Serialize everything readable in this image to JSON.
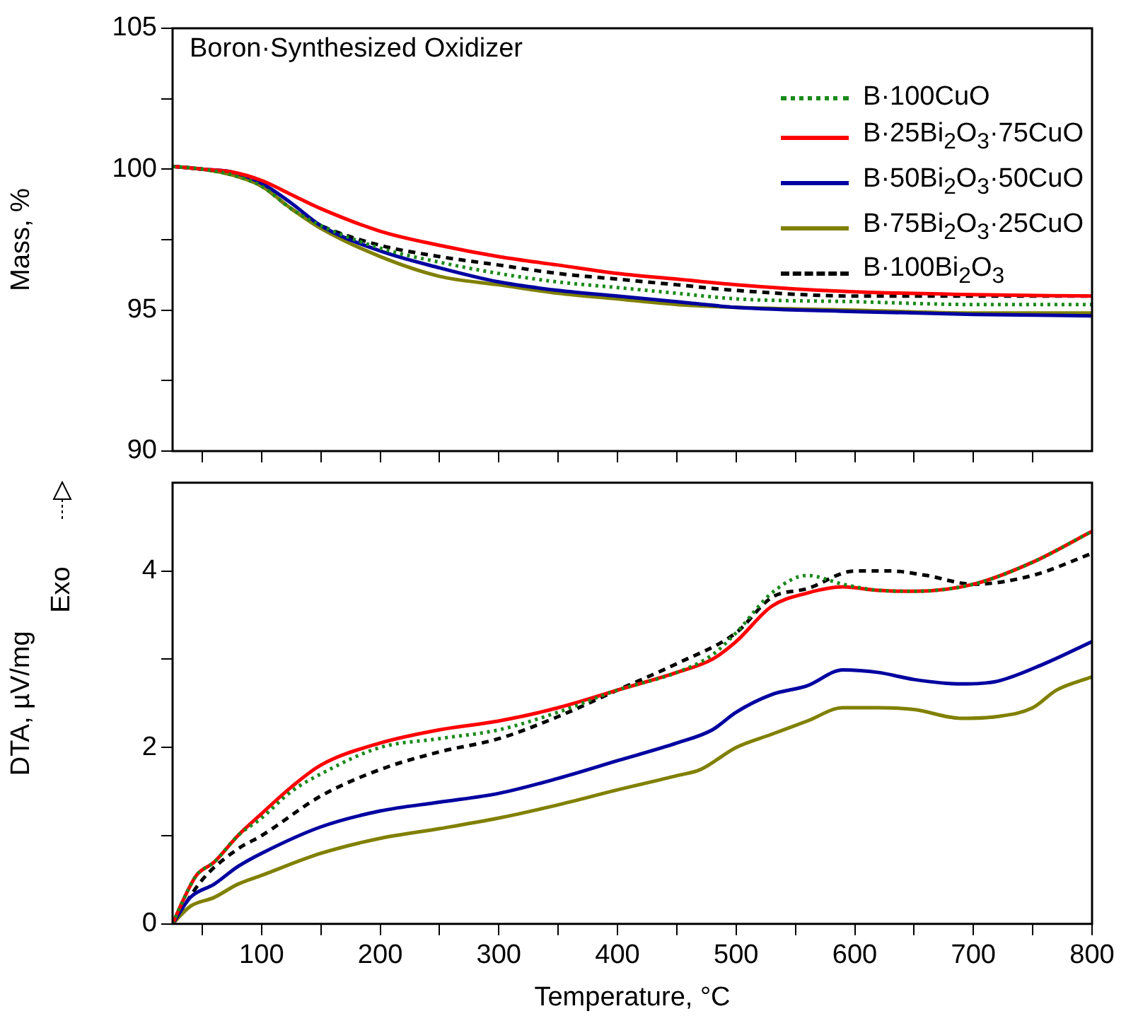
{
  "chart_data": [
    {
      "type": "line",
      "title": "Boron·Synthesized Oxidizer",
      "ylabel": "Mass, %",
      "xlim": [
        25,
        800
      ],
      "xticks": [
        {
          "value": 50,
          "label": null
        },
        {
          "value": 100,
          "label": null
        },
        {
          "value": 150,
          "label": null
        },
        {
          "value": 200,
          "label": null
        },
        {
          "value": 250,
          "label": null
        },
        {
          "value": 300,
          "label": null
        },
        {
          "value": 350,
          "label": null
        },
        {
          "value": 400,
          "label": null
        },
        {
          "value": 450,
          "label": null
        },
        {
          "value": 500,
          "label": null
        },
        {
          "value": 550,
          "label": null
        },
        {
          "value": 600,
          "label": null
        },
        {
          "value": 650,
          "label": null
        },
        {
          "value": 700,
          "label": null
        },
        {
          "value": 750,
          "label": null
        }
      ],
      "ylim": [
        90,
        105
      ],
      "yticks": [
        90,
        {
          "value": 92.5,
          "label": null
        },
        95,
        {
          "value": 97.5,
          "label": null
        },
        100,
        {
          "value": 102.5,
          "label": null
        },
        105
      ],
      "tick_labels": "y",
      "legend": "top right",
      "series": [
        {
          "name": "B·100CuO",
          "color": "#1a8a1a",
          "line_style": "dotted",
          "x": [
            25,
            50,
            75,
            100,
            125,
            150,
            200,
            250,
            300,
            350,
            400,
            450,
            500,
            600,
            700,
            800
          ],
          "values": [
            100.1,
            100,
            99.8,
            99.4,
            98.6,
            98.0,
            97.2,
            96.7,
            96.3,
            96.0,
            95.8,
            95.6,
            95.4,
            95.3,
            95.2,
            95.2
          ]
        },
        {
          "name": "B·25Bi$_{2}$O$_{3}$·75CuO",
          "color": "#ff0000",
          "line_style": "solid",
          "x": [
            25,
            50,
            75,
            100,
            125,
            150,
            200,
            250,
            300,
            350,
            400,
            450,
            500,
            550,
            600,
            700,
            800
          ],
          "values": [
            100.1,
            100.0,
            99.9,
            99.6,
            99.1,
            98.6,
            97.8,
            97.3,
            96.9,
            96.6,
            96.3,
            96.1,
            95.9,
            95.75,
            95.65,
            95.55,
            95.5
          ]
        },
        {
          "name": "B·50Bi$_{2}$O$_{3}$·50CuO",
          "color": "#0000a0",
          "line_style": "solid",
          "x": [
            25,
            50,
            75,
            100,
            125,
            150,
            200,
            250,
            300,
            350,
            400,
            450,
            500,
            600,
            700,
            800
          ],
          "values": [
            100.1,
            100.0,
            99.9,
            99.5,
            98.8,
            98.0,
            97.1,
            96.5,
            96.0,
            95.7,
            95.5,
            95.3,
            95.1,
            94.95,
            94.85,
            94.8
          ]
        },
        {
          "name": "B·75Bi$_{2}$O$_{3}$·25CuO",
          "color": "#808000",
          "line_style": "solid",
          "x": [
            25,
            50,
            75,
            100,
            125,
            150,
            200,
            250,
            300,
            350,
            400,
            450,
            500,
            600,
            700,
            800
          ],
          "values": [
            100.1,
            100,
            99.8,
            99.4,
            98.6,
            97.9,
            96.9,
            96.2,
            95.9,
            95.6,
            95.4,
            95.2,
            95.1,
            95.0,
            94.9,
            94.9
          ]
        },
        {
          "name": "B·100Bi$_{2}$O$_{3}$",
          "color": "#000000",
          "line_style": "dashed",
          "x": [
            25,
            50,
            75,
            100,
            125,
            150,
            200,
            250,
            300,
            350,
            400,
            450,
            500,
            600,
            700,
            800
          ],
          "values": [
            100.1,
            100,
            99.8,
            99.4,
            98.6,
            98.0,
            97.3,
            96.9,
            96.6,
            96.3,
            96.1,
            95.9,
            95.7,
            95.5,
            95.5,
            95.5
          ]
        }
      ]
    },
    {
      "type": "line",
      "xlabel": "Temperature, °C",
      "ylabel": "DTA, µV/mg",
      "annotations": [
        "Exo"
      ],
      "xlim": [
        25,
        800
      ],
      "xticks": [
        {
          "value": 50,
          "label": null
        },
        100,
        {
          "value": 150,
          "label": null
        },
        200,
        {
          "value": 250,
          "label": null
        },
        300,
        {
          "value": 350,
          "label": null
        },
        400,
        {
          "value": 450,
          "label": null
        },
        500,
        {
          "value": 550,
          "label": null
        },
        600,
        {
          "value": 650,
          "label": null
        },
        700,
        {
          "value": 750,
          "label": null
        },
        800
      ],
      "ylim": [
        0,
        5
      ],
      "yticks": [
        0,
        {
          "value": 1,
          "label": null
        },
        2,
        {
          "value": 3,
          "label": null
        },
        4
      ],
      "series": [
        {
          "color": "#1a8a1a",
          "line_style": "dotted",
          "x": [
            25,
            35,
            45,
            60,
            80,
            100,
            125,
            150,
            200,
            250,
            300,
            350,
            400,
            450,
            480,
            500,
            530,
            560,
            590,
            620,
            650,
            700,
            750,
            800
          ],
          "values": [
            0,
            0.3,
            0.55,
            0.7,
            1.0,
            1.2,
            1.5,
            1.7,
            2.0,
            2.1,
            2.2,
            2.4,
            2.65,
            2.85,
            3.05,
            3.3,
            3.75,
            3.95,
            3.85,
            3.78,
            3.77,
            3.85,
            4.1,
            4.45
          ]
        },
        {
          "color": "#ff0000",
          "line_style": "solid",
          "x": [
            25,
            35,
            45,
            60,
            80,
            100,
            125,
            150,
            200,
            250,
            300,
            350,
            400,
            450,
            480,
            500,
            530,
            560,
            590,
            620,
            650,
            700,
            750,
            800
          ],
          "values": [
            0,
            0.3,
            0.55,
            0.7,
            1.0,
            1.25,
            1.55,
            1.8,
            2.05,
            2.2,
            2.3,
            2.45,
            2.65,
            2.85,
            3.0,
            3.2,
            3.6,
            3.75,
            3.82,
            3.78,
            3.77,
            3.85,
            4.1,
            4.45
          ]
        },
        {
          "color": "#0000a0",
          "line_style": "solid",
          "x": [
            25,
            40,
            60,
            80,
            100,
            150,
            200,
            250,
            300,
            350,
            400,
            450,
            480,
            500,
            530,
            560,
            590,
            620,
            650,
            690,
            720,
            760,
            800
          ],
          "values": [
            0,
            0.3,
            0.45,
            0.65,
            0.8,
            1.1,
            1.28,
            1.38,
            1.48,
            1.65,
            1.85,
            2.05,
            2.2,
            2.4,
            2.6,
            2.7,
            2.88,
            2.85,
            2.77,
            2.72,
            2.75,
            2.95,
            3.2
          ]
        },
        {
          "color": "#808000",
          "line_style": "solid",
          "x": [
            25,
            40,
            60,
            80,
            100,
            150,
            200,
            250,
            300,
            350,
            400,
            450,
            470,
            500,
            530,
            560,
            590,
            620,
            650,
            690,
            720,
            750,
            770,
            800
          ],
          "values": [
            0,
            0.2,
            0.3,
            0.45,
            0.55,
            0.8,
            0.97,
            1.08,
            1.2,
            1.35,
            1.52,
            1.68,
            1.75,
            2.0,
            2.15,
            2.3,
            2.45,
            2.45,
            2.43,
            2.33,
            2.35,
            2.45,
            2.65,
            2.8
          ]
        },
        {
          "color": "#000000",
          "line_style": "dashed",
          "x": [
            25,
            50,
            80,
            100,
            150,
            200,
            250,
            300,
            350,
            400,
            450,
            500,
            530,
            560,
            600,
            630,
            660,
            700,
            750,
            800
          ],
          "values": [
            0,
            0.5,
            0.85,
            1.0,
            1.45,
            1.75,
            1.95,
            2.1,
            2.35,
            2.65,
            2.95,
            3.3,
            3.7,
            3.8,
            4.0,
            4.0,
            3.95,
            3.85,
            3.95,
            4.2
          ]
        }
      ]
    }
  ]
}
